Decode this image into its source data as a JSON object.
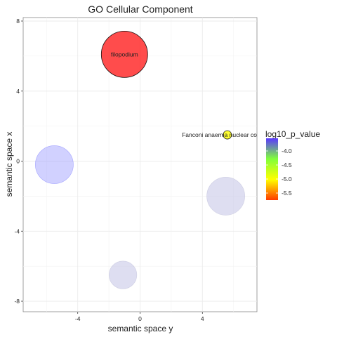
{
  "chart_data": {
    "type": "scatter",
    "title": "GO Cellular Component",
    "xlabel": "semantic space y",
    "ylabel": "semantic space x",
    "xlim": [
      -7.5,
      7.5
    ],
    "ylim": [
      -8.6,
      8.2
    ],
    "x_ticks": [
      -4,
      0,
      4
    ],
    "y_ticks": [
      8,
      4,
      0,
      -4,
      -8
    ],
    "x_tick_labels": [
      "-4",
      "0",
      "4"
    ],
    "y_tick_labels": [
      "8",
      "4",
      "0",
      "-4",
      "-8"
    ],
    "legend": {
      "title": "log10_p_value",
      "position": "right",
      "tick_values": [
        -4.0,
        -4.5,
        -5.0,
        -5.5
      ],
      "tick_labels": [
        "-4.0",
        "-4.5",
        "-5.0",
        "-5.5"
      ],
      "range": [
        -5.75,
        -3.55
      ],
      "colors": [
        "#5a38ff",
        "#80ff3a",
        "#ffff00",
        "#ff3a00"
      ]
    },
    "points": [
      {
        "label": "filopodium",
        "x": -1.0,
        "y": 6.1,
        "size": 1.0,
        "color": "#ff0000",
        "opacity": 0.7,
        "stroke": "#000000",
        "show_label": true
      },
      {
        "label": "Fanconi anaemia nuclear complex",
        "x": 5.6,
        "y": 1.5,
        "size": 0.18,
        "color": "#ffff00",
        "opacity": 0.8,
        "stroke": "#000000",
        "show_label": true
      },
      {
        "label": "",
        "x": -5.5,
        "y": -0.2,
        "size": 0.82,
        "color": "#9999ff",
        "opacity": 0.45,
        "stroke": "#6666ff",
        "show_label": false
      },
      {
        "label": "",
        "x": 5.5,
        "y": -2.0,
        "size": 0.82,
        "color": "#c8c8e8",
        "opacity": 0.6,
        "stroke": "#b0b0d0",
        "show_label": false
      },
      {
        "label": "",
        "x": -1.1,
        "y": -6.5,
        "size": 0.6,
        "color": "#c8c8e8",
        "opacity": 0.6,
        "stroke": "#b0b0d0",
        "show_label": false
      }
    ]
  }
}
